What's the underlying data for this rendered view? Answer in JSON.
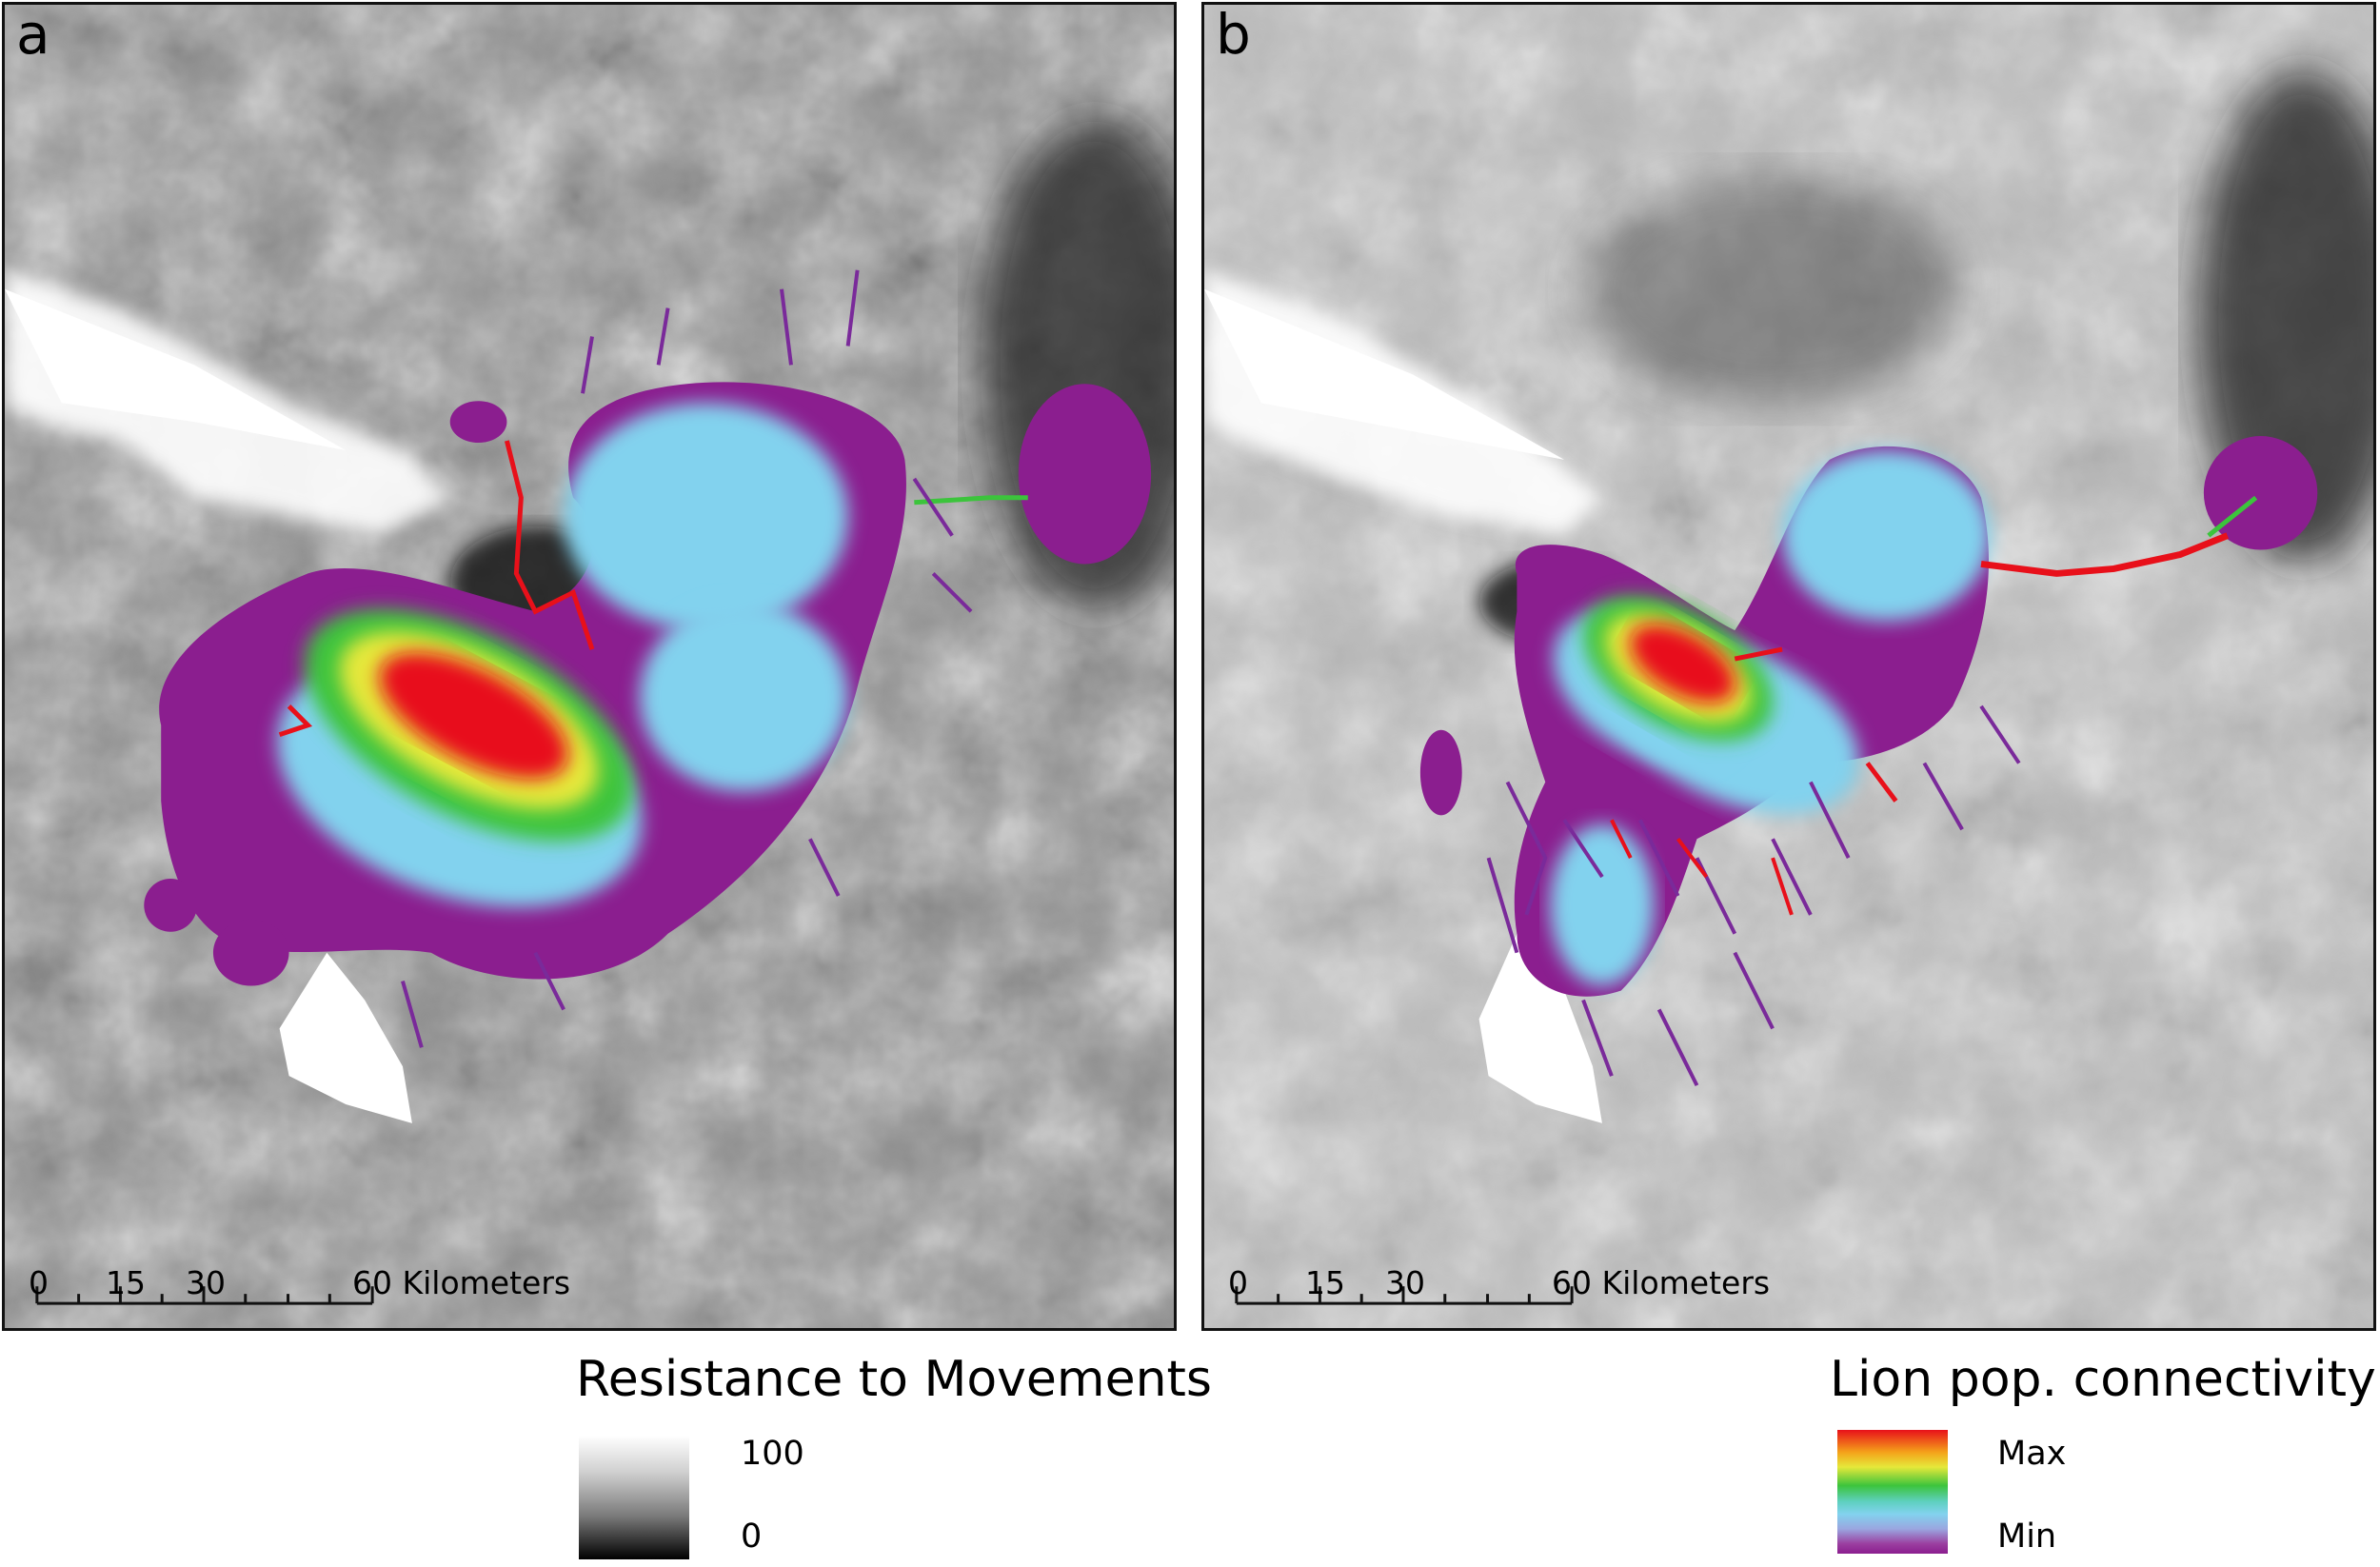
{
  "panels": [
    {
      "letter": "a",
      "scale_labels": [
        "0",
        "15",
        "30",
        "60 Kilometers"
      ]
    },
    {
      "letter": "b",
      "scale_labels": [
        "0",
        "15",
        "30",
        "60 Kilometers"
      ]
    }
  ],
  "legend_resistance": {
    "title": "Resistance to Movements",
    "max_label": "100",
    "min_label": "0"
  },
  "legend_connectivity": {
    "title": "Lion pop. connectivity",
    "max_label": "Max",
    "min_label": "Min"
  },
  "colors": {
    "frame": "#111111",
    "connectivity_high": "#e8101a",
    "connectivity_mid": "#3cc43c",
    "connectivity_low": "#82d2ee",
    "connectivity_min": "#8b1e8f",
    "corridor_line": "#7a2a9a"
  }
}
